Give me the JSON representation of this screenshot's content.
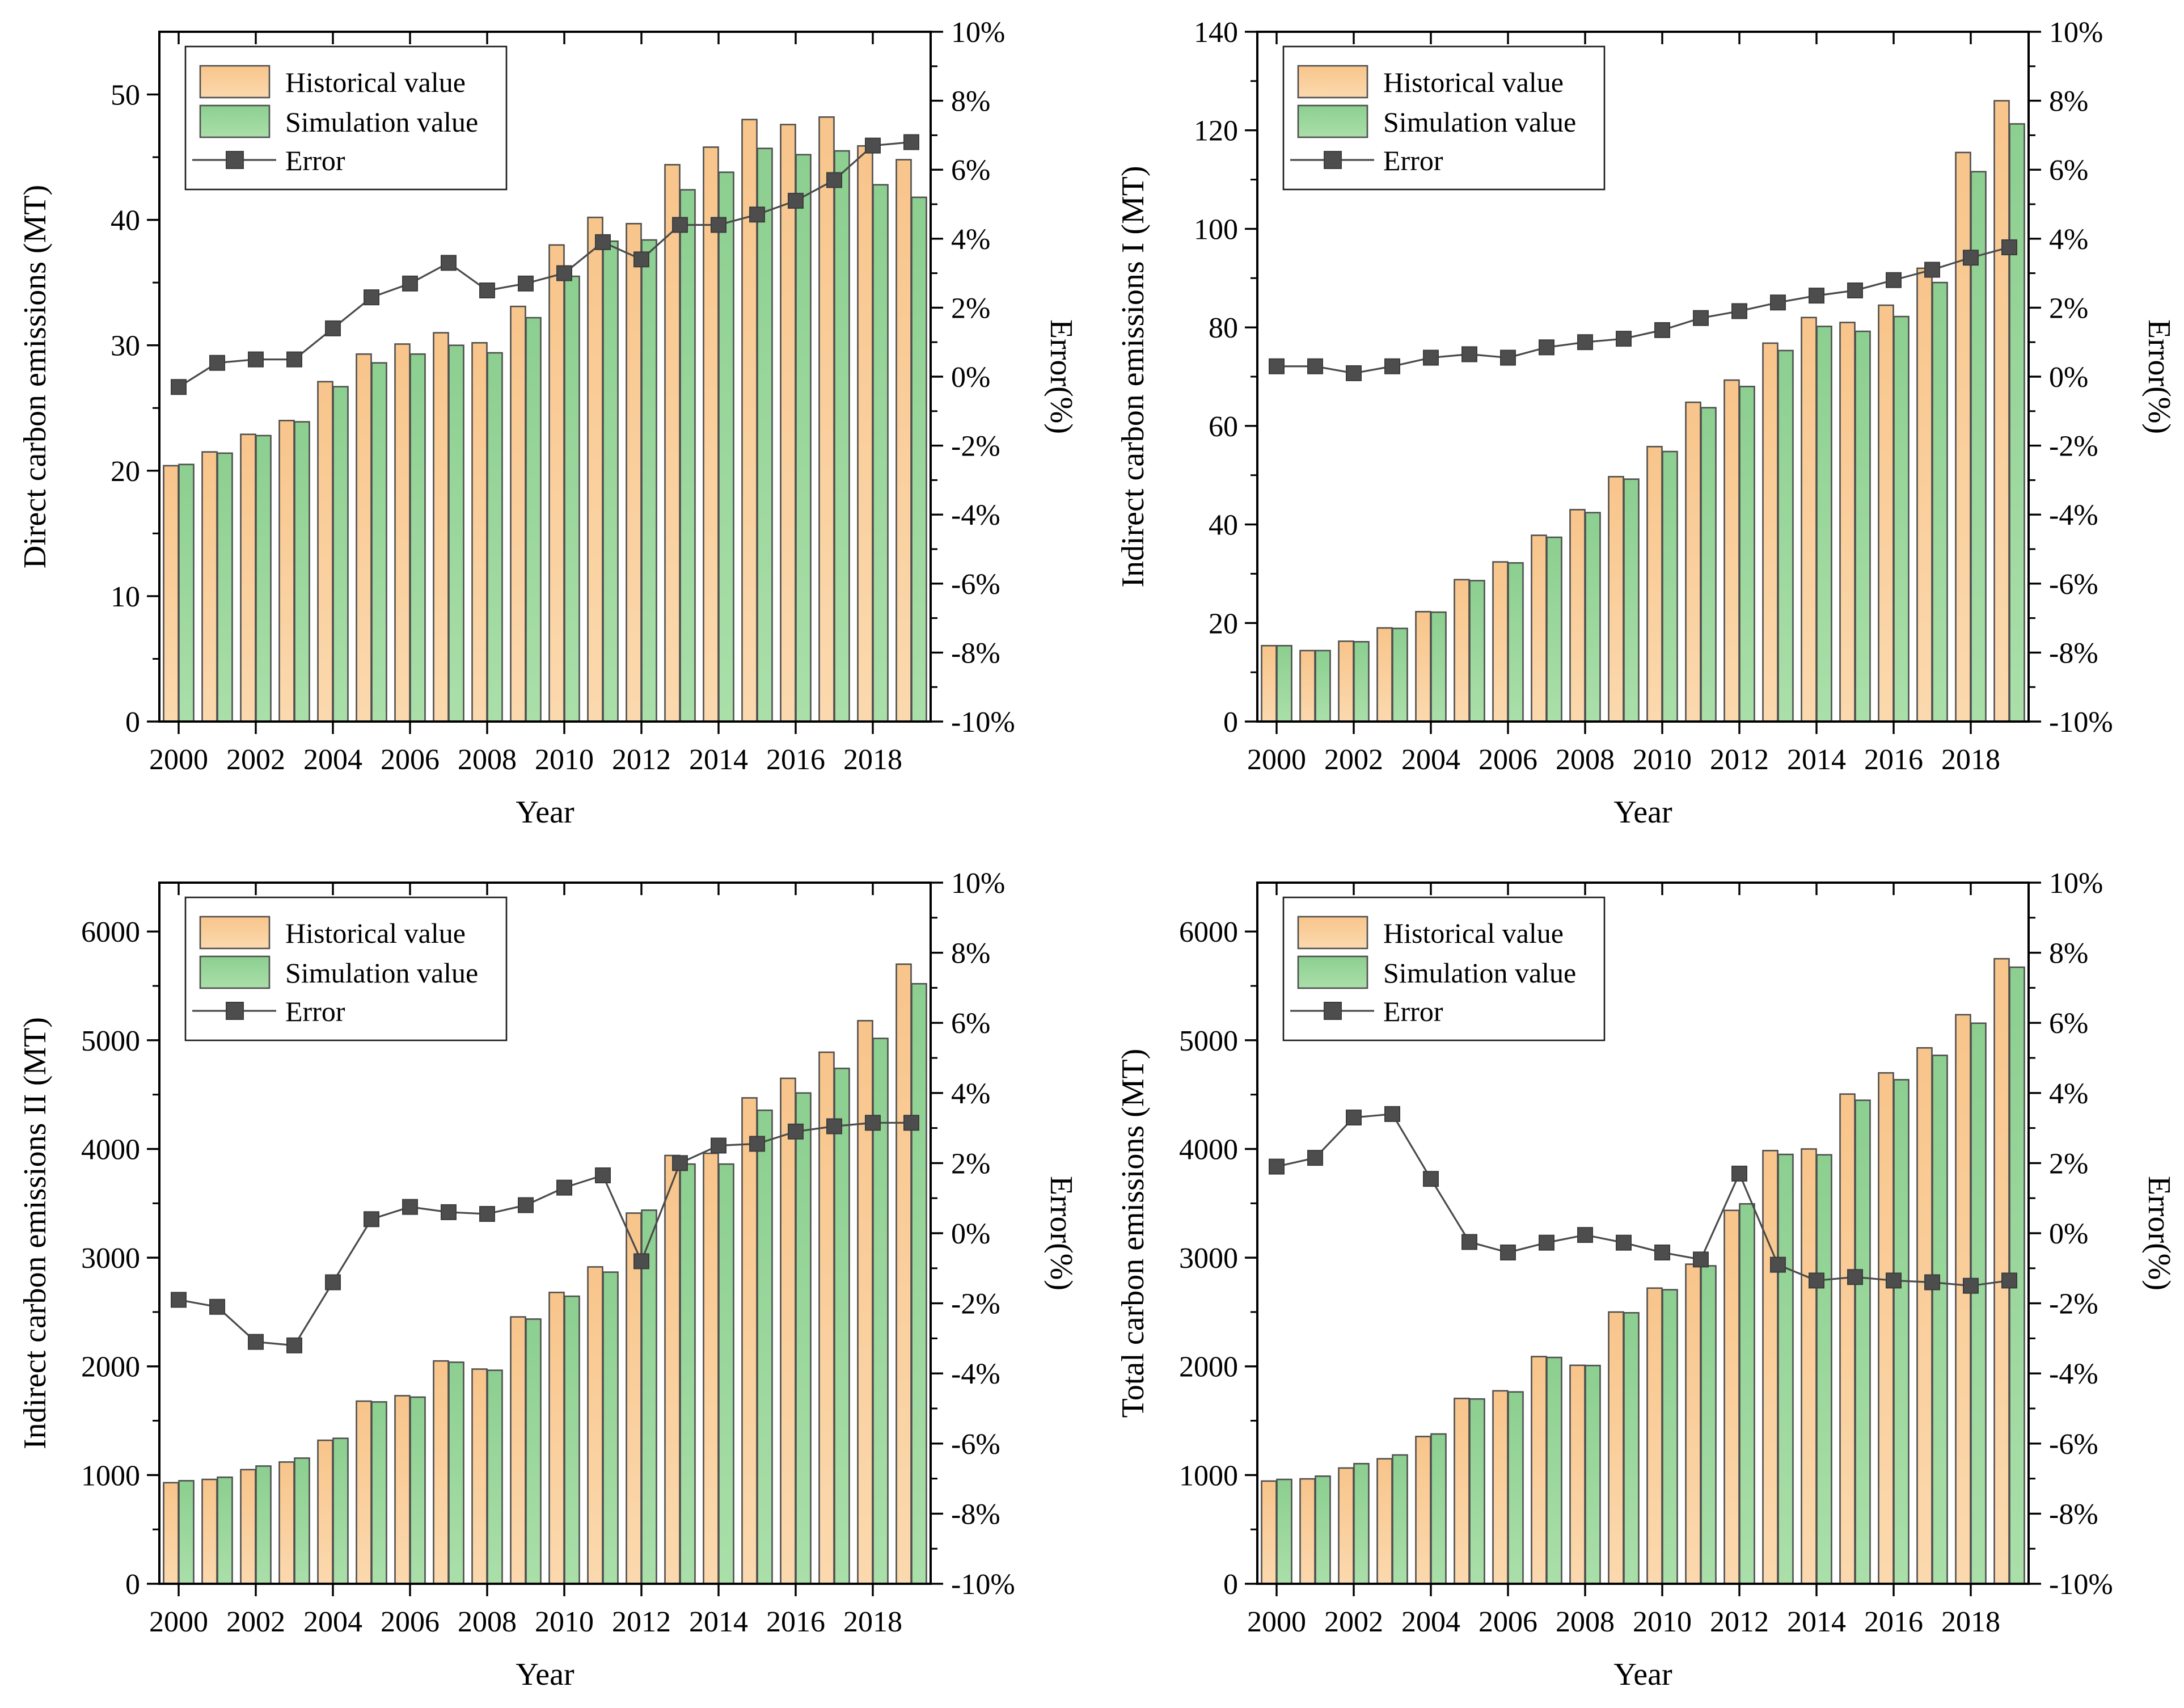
{
  "legend": {
    "historical_label": "Historical value",
    "simulation_label": "Simulation value",
    "error_label": "Error"
  },
  "axes": {
    "x_title": "Year",
    "error_axis_title": "Error(%)",
    "error_tick_values": [
      10,
      8,
      6,
      4,
      2,
      0,
      -2,
      -4,
      -6,
      -8,
      -10
    ],
    "error_tick_labels": [
      "10%",
      "8%",
      "6%",
      "4%",
      "2%",
      "0%",
      "-2%",
      "-4%",
      "-6%",
      "-8%",
      "-10%"
    ],
    "x_labeled_years": [
      2000,
      2002,
      2004,
      2006,
      2008,
      2010,
      2012,
      2014,
      2016,
      2018
    ]
  },
  "colors": {
    "historical_fill_top": "#f8c58b",
    "historical_fill_bottom": "#fbd9ae",
    "simulation_fill_top": "#8ccf90",
    "simulation_fill_bottom": "#aadfa9",
    "bar_border": "#4f4f4f",
    "error_line": "#4a4a4a",
    "error_marker": "#4d4d4d",
    "axis": "#000000",
    "background": "#ffffff"
  },
  "chart_data": [
    {
      "type": "bar",
      "key": "direct",
      "ylabel": "Direct carbon emissions (MT)",
      "xlabel": "Year",
      "y2label": "Error(%)",
      "ylim": [
        0,
        55
      ],
      "yticks": [
        0,
        10,
        20,
        30,
        40,
        50
      ],
      "y_minor_step": 5,
      "error_ylim": [
        -10,
        10
      ],
      "categories": [
        2000,
        2001,
        2002,
        2003,
        2004,
        2005,
        2006,
        2007,
        2008,
        2009,
        2010,
        2011,
        2012,
        2013,
        2014,
        2015,
        2016,
        2017,
        2018,
        2019
      ],
      "series": [
        {
          "name": "Historical value",
          "values": [
            20.4,
            21.5,
            22.9,
            24.0,
            27.1,
            29.3,
            30.1,
            31.0,
            30.2,
            33.1,
            38.0,
            40.2,
            39.7,
            44.4,
            45.8,
            48.0,
            47.6,
            48.2,
            45.9,
            44.8
          ]
        },
        {
          "name": "Simulation value",
          "values": [
            20.5,
            21.4,
            22.8,
            23.9,
            26.7,
            28.6,
            29.3,
            30.0,
            29.4,
            32.2,
            35.5,
            38.3,
            38.4,
            42.4,
            43.8,
            45.7,
            45.2,
            45.5,
            42.8,
            41.8
          ]
        }
      ],
      "error_pct": [
        -0.3,
        0.4,
        0.5,
        0.5,
        1.4,
        2.3,
        2.7,
        3.3,
        2.5,
        2.7,
        3.0,
        3.9,
        3.4,
        4.4,
        4.4,
        4.7,
        5.1,
        5.7,
        6.7,
        6.8
      ]
    },
    {
      "type": "bar",
      "key": "indirect1",
      "ylabel": "Indirect carbon emissions I (MT)",
      "xlabel": "Year",
      "y2label": "Error(%)",
      "ylim": [
        0,
        140
      ],
      "yticks": [
        0,
        20,
        40,
        60,
        80,
        100,
        120,
        140
      ],
      "y_minor_step": 10,
      "error_ylim": [
        -10,
        10
      ],
      "categories": [
        2000,
        2001,
        2002,
        2003,
        2004,
        2005,
        2006,
        2007,
        2008,
        2009,
        2010,
        2011,
        2012,
        2013,
        2014,
        2015,
        2016,
        2017,
        2018,
        2019
      ],
      "series": [
        {
          "name": "Historical value",
          "values": [
            15.4,
            14.4,
            16.3,
            19.0,
            22.3,
            28.8,
            32.4,
            37.8,
            43.0,
            49.7,
            55.8,
            64.8,
            69.3,
            76.8,
            82.0,
            81.0,
            84.5,
            92.0,
            115.5,
            126.0
          ]
        },
        {
          "name": "Simulation value",
          "values": [
            15.4,
            14.4,
            16.2,
            18.9,
            22.2,
            28.6,
            32.2,
            37.4,
            42.4,
            49.2,
            54.8,
            63.7,
            68.0,
            75.3,
            80.2,
            79.2,
            82.2,
            89.1,
            111.6,
            121.3
          ]
        }
      ],
      "error_pct": [
        0.3,
        0.3,
        0.1,
        0.3,
        0.55,
        0.65,
        0.55,
        0.85,
        1.0,
        1.1,
        1.35,
        1.7,
        1.9,
        2.15,
        2.35,
        2.5,
        2.8,
        3.1,
        3.45,
        3.75
      ]
    },
    {
      "type": "bar",
      "key": "indirect2",
      "ylabel": "Indirect carbon emissions II (MT)",
      "xlabel": "Year",
      "y2label": "Error(%)",
      "ylim": [
        0,
        6450
      ],
      "yticks": [
        0,
        1000,
        2000,
        3000,
        4000,
        5000,
        6000
      ],
      "y_minor_step": 500,
      "error_ylim": [
        -10,
        10
      ],
      "categories": [
        2000,
        2001,
        2002,
        2003,
        2004,
        2005,
        2006,
        2007,
        2008,
        2009,
        2010,
        2011,
        2012,
        2013,
        2014,
        2015,
        2016,
        2017,
        2018,
        2019
      ],
      "series": [
        {
          "name": "Historical value",
          "values": [
            930,
            960,
            1050,
            1120,
            1320,
            1680,
            1730,
            2050,
            1975,
            2455,
            2680,
            2915,
            3410,
            3940,
            3960,
            4470,
            4650,
            4890,
            5180,
            5700
          ]
        },
        {
          "name": "Simulation value",
          "values": [
            948,
            980,
            1083,
            1156,
            1338,
            1673,
            1717,
            2038,
            1964,
            2435,
            2645,
            2867,
            3437,
            3861,
            3861,
            4356,
            4515,
            4741,
            5017,
            5520
          ]
        }
      ],
      "error_pct": [
        -1.9,
        -2.1,
        -3.1,
        -3.2,
        -1.4,
        0.4,
        0.75,
        0.6,
        0.55,
        0.8,
        1.3,
        1.65,
        -0.8,
        2.0,
        2.5,
        2.55,
        2.9,
        3.05,
        3.15,
        3.15
      ]
    },
    {
      "type": "bar",
      "key": "total",
      "ylabel": "Total carbon emissions (MT)",
      "xlabel": "Year",
      "y2label": "Error(%)",
      "ylim": [
        0,
        6450
      ],
      "yticks": [
        0,
        1000,
        2000,
        3000,
        4000,
        5000,
        6000
      ],
      "y_minor_step": 500,
      "error_ylim": [
        -10,
        10
      ],
      "categories": [
        2000,
        2001,
        2002,
        2003,
        2004,
        2005,
        2006,
        2007,
        2008,
        2009,
        2010,
        2011,
        2012,
        2013,
        2014,
        2015,
        2016,
        2017,
        2018,
        2019
      ],
      "series": [
        {
          "name": "Historical value",
          "values": [
            945,
            965,
            1065,
            1150,
            1355,
            1705,
            1775,
            2090,
            2010,
            2500,
            2720,
            2940,
            3435,
            3985,
            4000,
            4505,
            4700,
            4930,
            5235,
            5750
          ]
        },
        {
          "name": "Simulation value",
          "values": [
            960,
            990,
            1105,
            1185,
            1378,
            1700,
            1765,
            2082,
            2008,
            2493,
            2705,
            2925,
            3495,
            3950,
            3946,
            4448,
            4637,
            4861,
            5157,
            5672
          ]
        }
      ],
      "error_pct": [
        1.9,
        2.15,
        3.3,
        3.4,
        1.55,
        -0.25,
        -0.55,
        -0.27,
        -0.05,
        -0.27,
        -0.55,
        -0.75,
        1.7,
        -0.9,
        -1.35,
        -1.25,
        -1.35,
        -1.4,
        -1.5,
        -1.35
      ]
    }
  ]
}
